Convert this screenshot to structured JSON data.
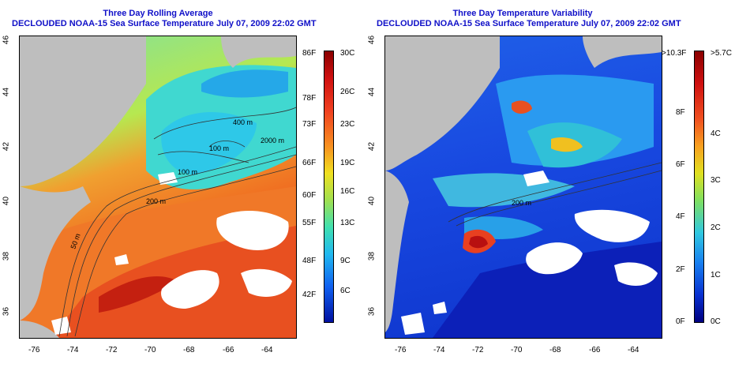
{
  "left_panel": {
    "title_line1": "Three Day Rolling Average",
    "title_line2": "DECLOUDED NOAA-15 Sea Surface Temperature July 07, 2009 22:02 GMT",
    "contour_labels": [
      "400 m",
      "100 m",
      "2000 m",
      "200 m",
      "50 m",
      "100 m"
    ],
    "colorbar_left_labels": [
      "86F",
      "78F",
      "73F",
      "66F",
      "60F",
      "55F",
      "48F",
      "42F"
    ],
    "colorbar_right_labels": [
      "30C",
      "26C",
      "23C",
      "19C",
      "16C",
      "13C",
      "9C",
      "6C"
    ]
  },
  "right_panel": {
    "title_line1": "Three Day Temperature Variability",
    "title_line2": "DECLOUDED NOAA-15 Sea Surface Temperature July 07, 2009 22:02 GMT",
    "contour_labels": [
      "200 m"
    ],
    "colorbar_left_labels": [
      ">10.3F",
      "8F",
      "6F",
      "4F",
      "2F",
      "0F"
    ],
    "colorbar_right_labels": [
      ">5.7C",
      "4C",
      "3C",
      "2C",
      "1C",
      "0C"
    ]
  },
  "axes": {
    "x_ticks": [
      "-76",
      "-74",
      "-72",
      "-70",
      "-68",
      "-66",
      "-64"
    ],
    "y_ticks": [
      "46",
      "44",
      "42",
      "40",
      "38",
      "36"
    ]
  },
  "colors": {
    "title": "#1010c8",
    "land": "#bebebe",
    "cloud": "#ffffff"
  }
}
